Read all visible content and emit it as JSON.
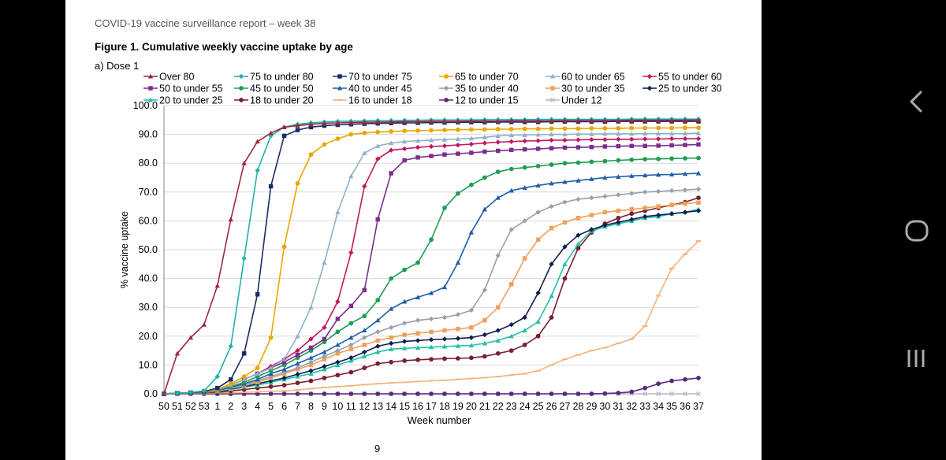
{
  "report": {
    "header": "COVID-19 vaccine surveillance report – week 38",
    "figure_title": "Figure 1. Cumulative weekly vaccine uptake by age",
    "subtitle": "a) Dose 1",
    "page_number": "9"
  },
  "nav": {
    "back": "back-icon",
    "home": "home-icon",
    "recents": "recents-icon"
  },
  "chart_data": {
    "type": "line",
    "title": "Figure 1. Cumulative weekly vaccine uptake by age",
    "subtitle": "a) Dose 1",
    "xlabel": "Week number",
    "ylabel": "% vaccine uptake",
    "ylim": [
      0,
      100
    ],
    "yticks": [
      "0.0",
      "10.0",
      "20.0",
      "30.0",
      "40.0",
      "50.0",
      "60.0",
      "70.0",
      "80.0",
      "90.0",
      "100.0"
    ],
    "grid": "horizontal",
    "legend": "top",
    "categories": [
      "50",
      "51",
      "52",
      "53",
      "1",
      "2",
      "3",
      "4",
      "5",
      "6",
      "7",
      "8",
      "9",
      "10",
      "11",
      "12",
      "13",
      "14",
      "15",
      "16",
      "17",
      "18",
      "19",
      "20",
      "21",
      "22",
      "23",
      "24",
      "25",
      "26",
      "27",
      "28",
      "29",
      "30",
      "31",
      "32",
      "33",
      "34",
      "35",
      "36",
      "37"
    ],
    "series": [
      {
        "name": "Over 80",
        "color": "#9b2a3c",
        "marker": "triangle",
        "values": [
          0,
          14,
          19.5,
          24,
          37.5,
          60.5,
          80,
          87.5,
          90.5,
          92.5,
          93,
          93.5,
          93.8,
          94,
          94.1,
          94.2,
          94.3,
          94.3,
          94.4,
          94.4,
          94.5,
          94.5,
          94.5,
          94.6,
          94.6,
          94.6,
          94.7,
          94.7,
          94.7,
          94.7,
          94.8,
          94.8,
          94.8,
          94.8,
          94.8,
          94.9,
          94.9,
          94.9,
          94.9,
          94.9,
          95
        ]
      },
      {
        "name": "75 to under 80",
        "color": "#20b2aa",
        "marker": "diamond",
        "values": [
          0,
          0.2,
          0.5,
          1,
          6,
          16.5,
          47,
          77.5,
          89.5,
          92.5,
          93.5,
          94,
          94.3,
          94.5,
          94.6,
          94.7,
          94.8,
          94.8,
          94.9,
          94.9,
          95,
          95,
          95,
          95,
          95.1,
          95.1,
          95.1,
          95.1,
          95.2,
          95.2,
          95.2,
          95.2,
          95.2,
          95.2,
          95.2,
          95.3,
          95.3,
          95.3,
          95.3,
          95.3,
          95.3
        ]
      },
      {
        "name": "70 to under 75",
        "color": "#1b2a6b",
        "marker": "square",
        "values": [
          0,
          0.2,
          0.4,
          0.8,
          2,
          5,
          14,
          34.5,
          72,
          89.5,
          91.5,
          92.5,
          93,
          93.3,
          93.5,
          93.7,
          93.8,
          93.9,
          94,
          94,
          94.1,
          94.1,
          94.2,
          94.2,
          94.2,
          94.3,
          94.3,
          94.3,
          94.3,
          94.4,
          94.4,
          94.4,
          94.4,
          94.4,
          94.5,
          94.5,
          94.5,
          94.5,
          94.5,
          94.5,
          94.5
        ]
      },
      {
        "name": "65 to under 70",
        "color": "#e8a800",
        "marker": "circle",
        "values": [
          0,
          0.2,
          0.4,
          0.7,
          1.5,
          3.5,
          6,
          9,
          19.5,
          51,
          73,
          83,
          86.5,
          88.5,
          90,
          90.5,
          90.8,
          91,
          91.2,
          91.3,
          91.4,
          91.5,
          91.6,
          91.7,
          91.7,
          91.8,
          91.8,
          91.9,
          91.9,
          92,
          92,
          92,
          92.1,
          92.1,
          92.1,
          92.2,
          92.2,
          92.2,
          92.2,
          92.3,
          92.3
        ]
      },
      {
        "name": "60 to under 65",
        "color": "#8fb3c8",
        "marker": "triangle",
        "values": [
          0,
          0.2,
          0.4,
          0.7,
          1.5,
          3,
          5,
          7,
          9,
          12,
          20,
          30,
          45.5,
          63,
          75.5,
          83.5,
          86,
          87,
          87.5,
          87.8,
          88,
          88.2,
          88.4,
          88.6,
          89,
          89.5,
          89.7,
          89.8,
          89.9,
          90,
          90,
          90.1,
          90.1,
          90.2,
          90.2,
          90.2,
          90.3,
          90.3,
          90.3,
          90.3,
          90.4
        ]
      },
      {
        "name": "55 to under 60",
        "color": "#c2185b",
        "marker": "diamond",
        "values": [
          0,
          0.2,
          0.4,
          0.7,
          1.5,
          3,
          5,
          7,
          9.5,
          12,
          15,
          19,
          23,
          32,
          49,
          72,
          81.5,
          84.5,
          85,
          85.5,
          85.8,
          86,
          86.3,
          86.6,
          87,
          87.3,
          87.5,
          87.7,
          87.8,
          88,
          88,
          88.1,
          88.2,
          88.2,
          88.3,
          88.3,
          88.4,
          88.4,
          88.5,
          88.5,
          88.5
        ]
      },
      {
        "name": "50 to under 55",
        "color": "#7b2d8e",
        "marker": "square",
        "values": [
          0,
          0.2,
          0.4,
          0.7,
          1.5,
          3,
          5,
          7,
          9,
          11,
          13.5,
          16,
          19,
          26,
          30.5,
          36,
          60.5,
          76.5,
          81,
          82,
          82.5,
          83,
          83.3,
          83.6,
          84,
          84.3,
          84.6,
          84.8,
          85,
          85.2,
          85.4,
          85.5,
          85.6,
          85.8,
          85.9,
          86,
          86,
          86.1,
          86.2,
          86.3,
          86.5
        ]
      },
      {
        "name": "45 to under 50",
        "color": "#1e9e55",
        "marker": "circle",
        "values": [
          0,
          0.2,
          0.4,
          0.6,
          1.3,
          2.5,
          4,
          6,
          8,
          10,
          12.5,
          15,
          18,
          21.5,
          24.5,
          27,
          32.5,
          40,
          43,
          45.5,
          53.5,
          64.5,
          69.5,
          72.5,
          75,
          77,
          78,
          78.5,
          79,
          79.5,
          80,
          80.2,
          80.5,
          80.7,
          81,
          81.2,
          81.4,
          81.5,
          81.6,
          81.7,
          81.8
        ]
      },
      {
        "name": "40 to under 45",
        "color": "#1f5fa8",
        "marker": "triangle",
        "values": [
          0,
          0.2,
          0.4,
          0.6,
          1.2,
          2.3,
          3.5,
          5,
          7,
          8.5,
          10.5,
          12.5,
          14.5,
          17,
          19.5,
          22,
          25.5,
          29.5,
          32,
          33.5,
          35,
          37,
          45.5,
          56,
          64,
          68,
          70.5,
          71.5,
          72.3,
          73,
          73.5,
          74,
          74.5,
          75,
          75.3,
          75.6,
          75.8,
          76,
          76.1,
          76.3,
          76.5
        ]
      },
      {
        "name": "35 to under 40",
        "color": "#9aa0ab",
        "marker": "diamond",
        "values": [
          0,
          0.2,
          0.3,
          0.5,
          1,
          2,
          3,
          4.5,
          6,
          7.5,
          9,
          11,
          13,
          15,
          17,
          19.5,
          21.5,
          23,
          24.5,
          25.5,
          26,
          26.5,
          27.5,
          29,
          36,
          48,
          57,
          60,
          63,
          65,
          66.5,
          67.5,
          68,
          68.5,
          69,
          69.5,
          70,
          70.2,
          70.5,
          70.7,
          71
        ]
      },
      {
        "name": "30 to under 35",
        "color": "#f0a05a",
        "marker": "square",
        "values": [
          0,
          0.2,
          0.3,
          0.5,
          1,
          1.8,
          2.8,
          4,
          5.5,
          7,
          8.5,
          10,
          12,
          14,
          15.5,
          17,
          18.5,
          19.5,
          20.5,
          21,
          21.5,
          22,
          22.5,
          23,
          25.5,
          30,
          38,
          47,
          53.5,
          57.5,
          59.5,
          61,
          62,
          63,
          63.5,
          64,
          64.5,
          65,
          65.5,
          66,
          66.3
        ]
      },
      {
        "name": "25 to under 30",
        "color": "#0f1f4f",
        "marker": "diamond",
        "values": [
          0,
          0.2,
          0.3,
          0.5,
          0.9,
          1.6,
          2.5,
          3.5,
          4.5,
          5.5,
          6.8,
          8,
          9.5,
          11,
          12.5,
          14.5,
          16.5,
          17.5,
          18.2,
          18.5,
          18.8,
          19,
          19.2,
          19.5,
          20.5,
          22,
          24,
          26.5,
          35,
          45,
          51,
          55,
          57,
          58.5,
          59.5,
          60.5,
          61.5,
          62,
          62.5,
          63,
          63.5
        ]
      },
      {
        "name": "20 to under 25",
        "color": "#22c1a6",
        "marker": "triangle",
        "values": [
          0,
          0.2,
          0.3,
          0.5,
          0.8,
          1.5,
          2.3,
          3,
          4,
          5,
          6,
          7,
          8.5,
          10,
          11.5,
          13,
          14.5,
          15.5,
          15.8,
          16,
          16.2,
          16.4,
          16.6,
          16.8,
          17.5,
          18.5,
          20,
          22,
          25,
          34,
          45,
          52,
          56.5,
          58,
          59,
          60,
          61,
          61.5,
          62.5,
          63,
          64
        ]
      },
      {
        "name": "18 to under 20",
        "color": "#7a1f2d",
        "marker": "circle",
        "values": [
          0,
          0.1,
          0.2,
          0.3,
          0.5,
          1,
          1.5,
          2,
          2.5,
          3,
          3.8,
          4.5,
          5.5,
          6.5,
          7.5,
          9,
          10.5,
          11,
          11.5,
          11.8,
          12,
          12.2,
          12.3,
          12.5,
          13,
          14,
          15,
          17,
          20,
          26.5,
          40,
          50.5,
          56,
          59,
          61,
          62.5,
          63.5,
          64.5,
          65.5,
          66.5,
          68
        ]
      },
      {
        "name": "16 to under 18",
        "color": "#f5b27d",
        "marker": "dash",
        "values": [
          0,
          0,
          0.1,
          0.2,
          0.3,
          0.4,
          0.5,
          0.7,
          0.9,
          1,
          1.3,
          1.8,
          2.2,
          2.5,
          2.8,
          3.2,
          3.5,
          3.8,
          4,
          4.3,
          4.5,
          4.7,
          5,
          5.3,
          5.6,
          6,
          6.5,
          7,
          8,
          10,
          12,
          13.5,
          15,
          16,
          17.5,
          19,
          23.5,
          34,
          43.5,
          48.5,
          53
        ]
      },
      {
        "name": "12 to under 15",
        "color": "#5a2a7a",
        "marker": "circle",
        "values": [
          0,
          0,
          0,
          0,
          0,
          0,
          0,
          0,
          0,
          0,
          0,
          0,
          0,
          0,
          0,
          0,
          0,
          0,
          0,
          0,
          0,
          0,
          0,
          0,
          0,
          0,
          0,
          0,
          0,
          0,
          0,
          0,
          0,
          0.1,
          0.3,
          0.7,
          2,
          3.5,
          4.5,
          5,
          5.5
        ]
      },
      {
        "name": "Under 12",
        "color": "#b0b8c8",
        "marker": "cross",
        "values": [
          0,
          0,
          0,
          0,
          0,
          0,
          0,
          0,
          0,
          0,
          0,
          0,
          0,
          0,
          0,
          0,
          0,
          0,
          0,
          0,
          0,
          0,
          0,
          0,
          0,
          0,
          0,
          0,
          0,
          0,
          0,
          0,
          0,
          0,
          0,
          0,
          0,
          0,
          0,
          0,
          0
        ]
      }
    ]
  }
}
